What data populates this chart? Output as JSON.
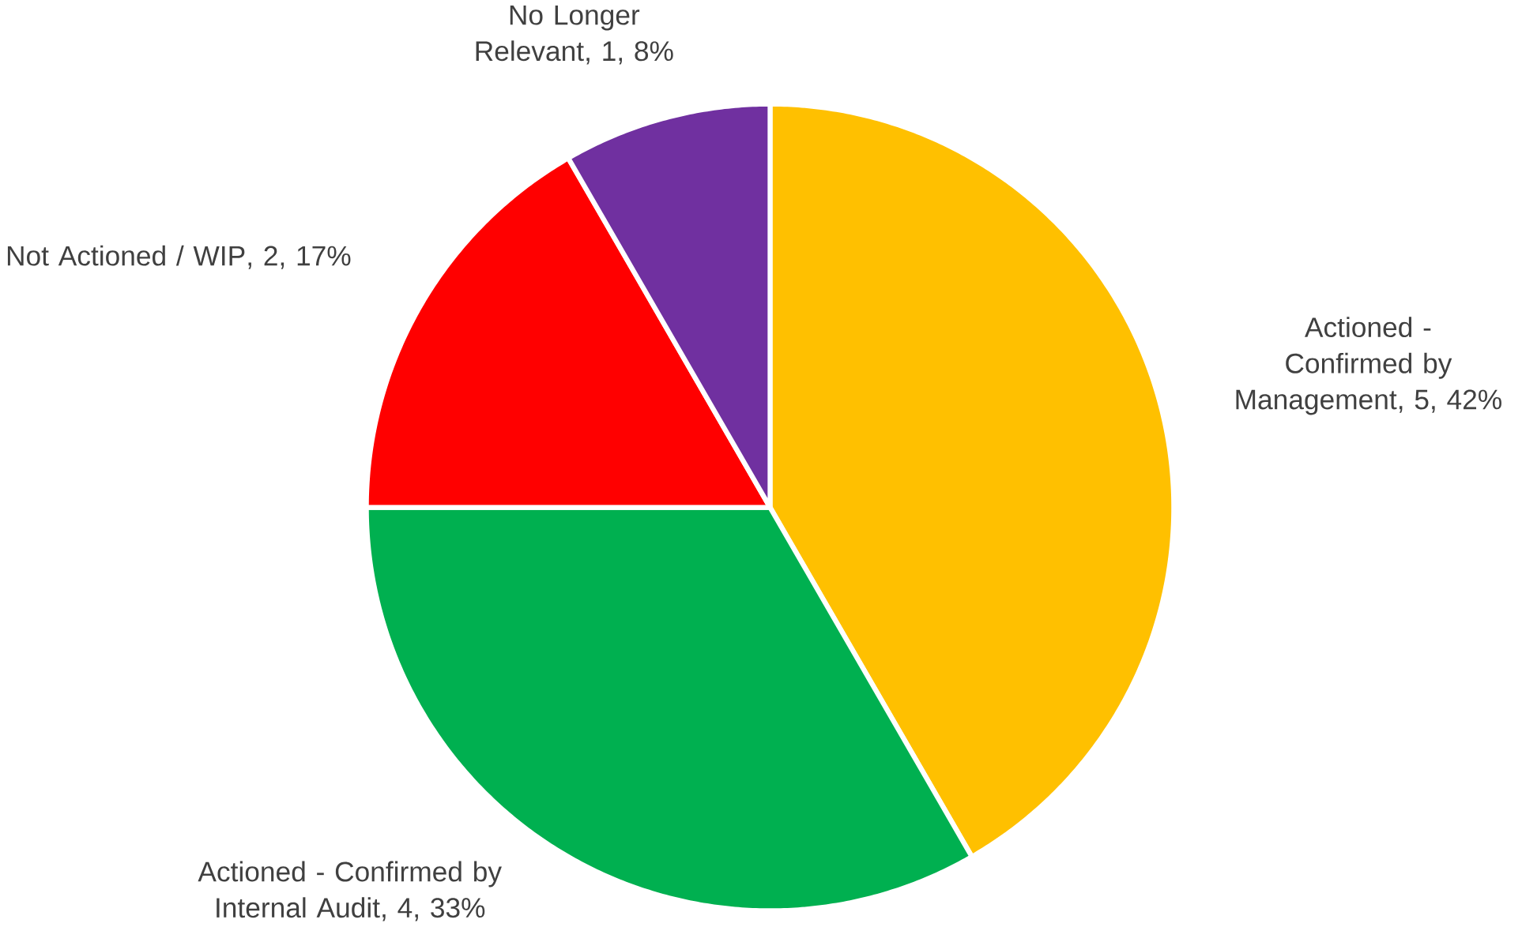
{
  "chart_data": {
    "type": "pie",
    "categories": [
      "Actioned - Confirmed by Management",
      "Actioned - Confirmed by Internal Audit",
      "Not Actioned / WIP",
      "No Longer Relevant"
    ],
    "values": [
      5,
      4,
      2,
      1
    ],
    "value_labels": [
      ", 5, 42%",
      ", 4, 33%",
      ", 2, 17%",
      ", 1, 8%"
    ],
    "colors": [
      "#ffc000",
      "#00b050",
      "#ff0000",
      "#7030a0"
    ]
  }
}
